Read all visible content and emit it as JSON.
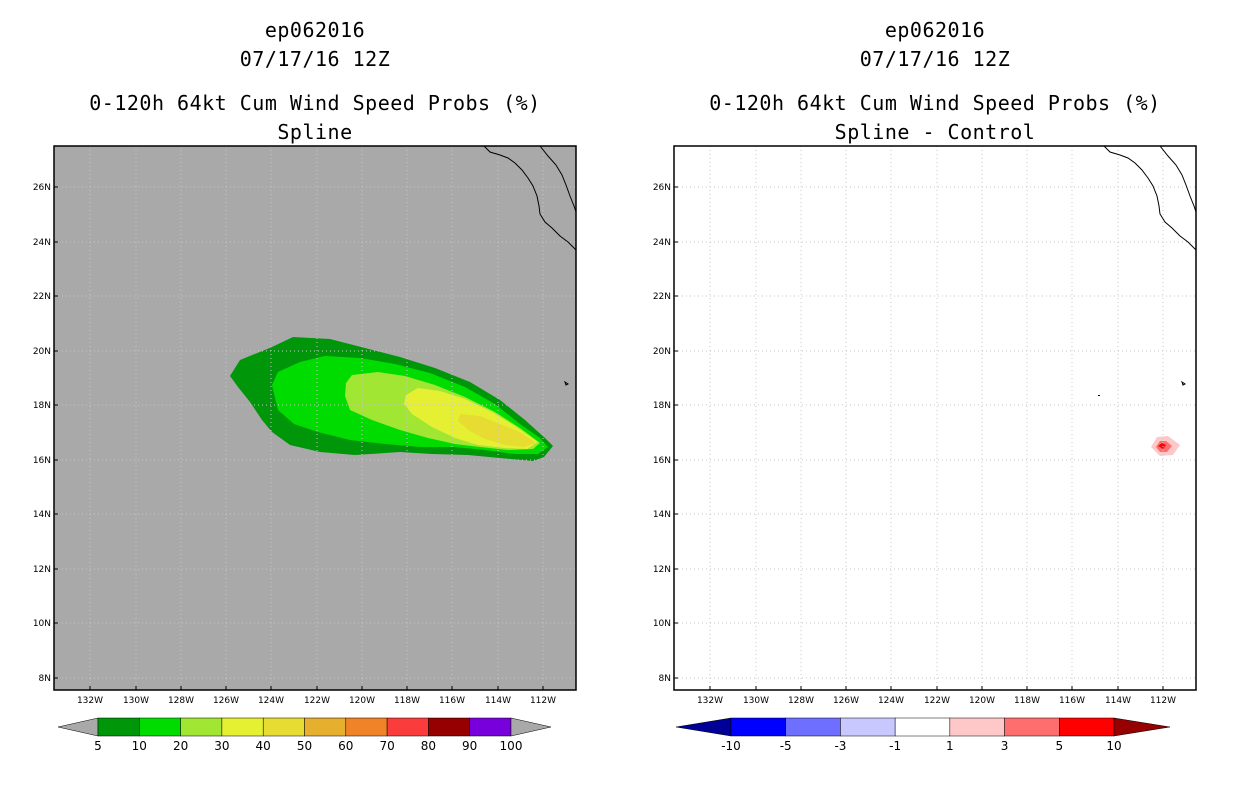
{
  "left_panel": {
    "storm": "ep062016",
    "datetime": "07/17/16 12Z",
    "product": "0-120h 64kt Cum Wind Speed Probs (%)",
    "subtitle": "Spline",
    "lat_labels": [
      "26N",
      "24N",
      "22N",
      "20N",
      "18N",
      "16N",
      "14N",
      "12N",
      "10N",
      "8N"
    ],
    "lon_labels": [
      "132W",
      "130W",
      "128W",
      "126W",
      "124W",
      "122W",
      "120W",
      "118W",
      "116W",
      "114W",
      "112W"
    ],
    "colorbar": {
      "labels": [
        "5",
        "10",
        "20",
        "30",
        "40",
        "50",
        "60",
        "70",
        "80",
        "90",
        "100"
      ],
      "colors": [
        "#00960a",
        "#00dc00",
        "#a0e632",
        "#e6f032",
        "#e6dc32",
        "#e6af2d",
        "#f08228",
        "#fa3c3c",
        "#960000",
        "#7800dc"
      ]
    }
  },
  "right_panel": {
    "storm": "ep062016",
    "datetime": "07/17/16 12Z",
    "product": "0-120h 64kt Cum Wind Speed Probs (%)",
    "subtitle": "Spline - Control",
    "lat_labels": [
      "26N",
      "24N",
      "22N",
      "20N",
      "18N",
      "16N",
      "14N",
      "12N",
      "10N",
      "8N"
    ],
    "lon_labels": [
      "132W",
      "130W",
      "128W",
      "126W",
      "124W",
      "122W",
      "120W",
      "118W",
      "116W",
      "114W",
      "112W"
    ],
    "colorbar": {
      "labels": [
        "-10",
        "-5",
        "-3",
        "-1",
        "1",
        "3",
        "5",
        "10"
      ],
      "colors": [
        "#000096",
        "#0000ff",
        "#6e6eff",
        "#c8c8ff",
        "#ffffff",
        "#ffc8c8",
        "#ff6e6e",
        "#ff0000",
        "#960000"
      ]
    }
  }
}
